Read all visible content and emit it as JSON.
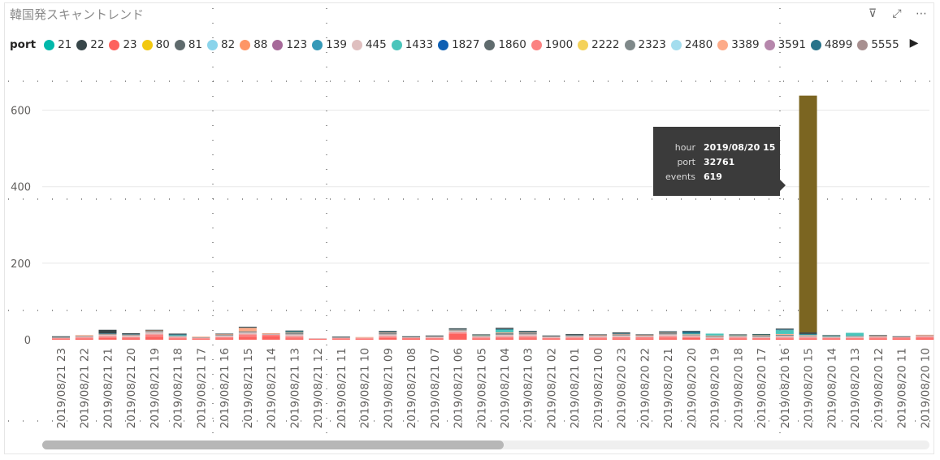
{
  "title": "韓国発スキャントレンド",
  "toolbar": [
    {
      "name": "filter-icon",
      "glyph": "⊽"
    },
    {
      "name": "focus-mode-icon",
      "glyph": "⤢"
    },
    {
      "name": "more-options-icon",
      "glyph": "⋯"
    }
  ],
  "legend": {
    "title": "port",
    "next_glyph": "▶",
    "items": [
      {
        "label": "21",
        "color": "#01B8AA"
      },
      {
        "label": "22",
        "color": "#374649"
      },
      {
        "label": "23",
        "color": "#FD625E"
      },
      {
        "label": "80",
        "color": "#F2C80F"
      },
      {
        "label": "81",
        "color": "#5F6B6D"
      },
      {
        "label": "82",
        "color": "#8AD4EB"
      },
      {
        "label": "88",
        "color": "#FE9666"
      },
      {
        "label": "123",
        "color": "#A66999"
      },
      {
        "label": "139",
        "color": "#3599B8"
      },
      {
        "label": "445",
        "color": "#DFBFBF"
      },
      {
        "label": "1433",
        "color": "#4AC5BB"
      },
      {
        "label": "1827",
        "color": "#0E5FB3"
      },
      {
        "label": "1860",
        "color": "#5F6B6D"
      },
      {
        "label": "1900",
        "color": "#FB8281"
      },
      {
        "label": "2222",
        "color": "#F4D25A"
      },
      {
        "label": "2323",
        "color": "#7F898A"
      },
      {
        "label": "2480",
        "color": "#A4DDEE"
      },
      {
        "label": "3389",
        "color": "#FDAB89"
      },
      {
        "label": "3591",
        "color": "#B687AC"
      },
      {
        "label": "4899",
        "color": "#28738A"
      },
      {
        "label": "5555",
        "color": "#A78F8F"
      }
    ]
  },
  "tooltip": {
    "rows": [
      {
        "key": "hour",
        "value": "2019/08/20 15"
      },
      {
        "key": "port",
        "value": "32761"
      },
      {
        "key": "events",
        "value": "619"
      }
    ]
  },
  "chart_data": {
    "type": "bar",
    "stacked": true,
    "ylim": [
      0,
      650
    ],
    "yticks": [
      0,
      200,
      400,
      600
    ],
    "grid": true,
    "legend_position": "top",
    "categories": [
      "2019/08/21 23",
      "2019/08/21 22",
      "2019/08/21 21",
      "2019/08/21 20",
      "2019/08/21 19",
      "2019/08/21 18",
      "2019/08/21 17",
      "2019/08/21 16",
      "2019/08/21 15",
      "2019/08/21 14",
      "2019/08/21 13",
      "2019/08/21 12",
      "2019/08/21 11",
      "2019/08/21 10",
      "2019/08/21 09",
      "2019/08/21 08",
      "2019/08/21 07",
      "2019/08/21 06",
      "2019/08/21 05",
      "2019/08/21 04",
      "2019/08/21 03",
      "2019/08/21 02",
      "2019/08/21 01",
      "2019/08/21 00",
      "2019/08/20 23",
      "2019/08/20 22",
      "2019/08/20 21",
      "2019/08/20 20",
      "2019/08/20 19",
      "2019/08/20 18",
      "2019/08/20 17",
      "2019/08/20 16",
      "2019/08/20 15",
      "2019/08/20 14",
      "2019/08/20 13",
      "2019/08/20 12",
      "2019/08/20 11",
      "2019/08/20 10"
    ],
    "series": [
      {
        "name": "23",
        "color": "#FD625E",
        "values": [
          2,
          3,
          5,
          4,
          8,
          3,
          2,
          4,
          8,
          10,
          4,
          2,
          2,
          2,
          5,
          3,
          2,
          15,
          3,
          4,
          4,
          2,
          3,
          3,
          3,
          3,
          4,
          5,
          2,
          3,
          2,
          3,
          3,
          2,
          2,
          3,
          3,
          4
        ]
      },
      {
        "name": "1900",
        "color": "#FB8281",
        "values": [
          2,
          3,
          4,
          3,
          6,
          3,
          2,
          3,
          6,
          3,
          5,
          1,
          2,
          2,
          4,
          2,
          3,
          4,
          3,
          4,
          5,
          3,
          3,
          3,
          4,
          4,
          5,
          3,
          2,
          3,
          3,
          3,
          3,
          3,
          3,
          3,
          3,
          4
        ]
      },
      {
        "name": "445",
        "color": "#DFBFBF",
        "values": [
          2,
          3,
          4,
          4,
          6,
          3,
          2,
          4,
          5,
          2,
          5,
          1,
          2,
          2,
          5,
          2,
          3,
          4,
          3,
          5,
          5,
          3,
          3,
          4,
          4,
          3,
          5,
          3,
          3,
          3,
          3,
          4,
          3,
          3,
          3,
          3,
          2,
          3
        ]
      },
      {
        "name": "2323",
        "color": "#7F898A",
        "values": [
          1,
          1,
          2,
          2,
          3,
          2,
          1,
          2,
          3,
          1,
          4,
          0,
          1,
          0,
          4,
          1,
          2,
          2,
          2,
          4,
          4,
          2,
          2,
          2,
          3,
          2,
          3,
          2,
          3,
          2,
          4,
          3,
          2,
          1,
          2,
          1,
          0,
          1
        ]
      },
      {
        "name": "3389",
        "color": "#FDAB89",
        "values": [
          0,
          2,
          1,
          1,
          2,
          0,
          1,
          2,
          10,
          1,
          2,
          0,
          0,
          1,
          2,
          0,
          0,
          2,
          1,
          2,
          2,
          0,
          1,
          1,
          2,
          1,
          2,
          1,
          1,
          1,
          1,
          2,
          1,
          0,
          0,
          1,
          0,
          1
        ]
      },
      {
        "name": "1433",
        "color": "#4AC5BB",
        "values": [
          0,
          0,
          0,
          0,
          0,
          1,
          0,
          0,
          0,
          0,
          1,
          0,
          0,
          0,
          0,
          0,
          0,
          0,
          1,
          8,
          0,
          0,
          0,
          0,
          0,
          0,
          0,
          2,
          5,
          1,
          1,
          10,
          2,
          2,
          8,
          0,
          0,
          0
        ]
      },
      {
        "name": "4899",
        "color": "#28738A",
        "values": [
          0,
          0,
          1,
          1,
          0,
          2,
          0,
          0,
          1,
          0,
          1,
          0,
          0,
          0,
          1,
          0,
          0,
          1,
          0,
          1,
          1,
          0,
          1,
          0,
          1,
          0,
          1,
          6,
          0,
          0,
          0,
          2,
          1,
          0,
          0,
          0,
          0,
          0
        ]
      },
      {
        "name": "22",
        "color": "#374649",
        "values": [
          2,
          0,
          9,
          2,
          1,
          2,
          0,
          1,
          1,
          0,
          2,
          0,
          1,
          0,
          2,
          1,
          1,
          2,
          1,
          3,
          2,
          1,
          2,
          1,
          2,
          1,
          2,
          1,
          0,
          1,
          1,
          2,
          4,
          1,
          0,
          1,
          1,
          0
        ]
      },
      {
        "name": "32761",
        "color": "#7B6521",
        "values": [
          0,
          0,
          0,
          0,
          0,
          0,
          0,
          0,
          0,
          0,
          0,
          0,
          0,
          0,
          0,
          0,
          0,
          0,
          0,
          0,
          0,
          0,
          0,
          0,
          0,
          0,
          0,
          0,
          0,
          0,
          0,
          0,
          619,
          0,
          0,
          0,
          0,
          0
        ]
      }
    ]
  }
}
